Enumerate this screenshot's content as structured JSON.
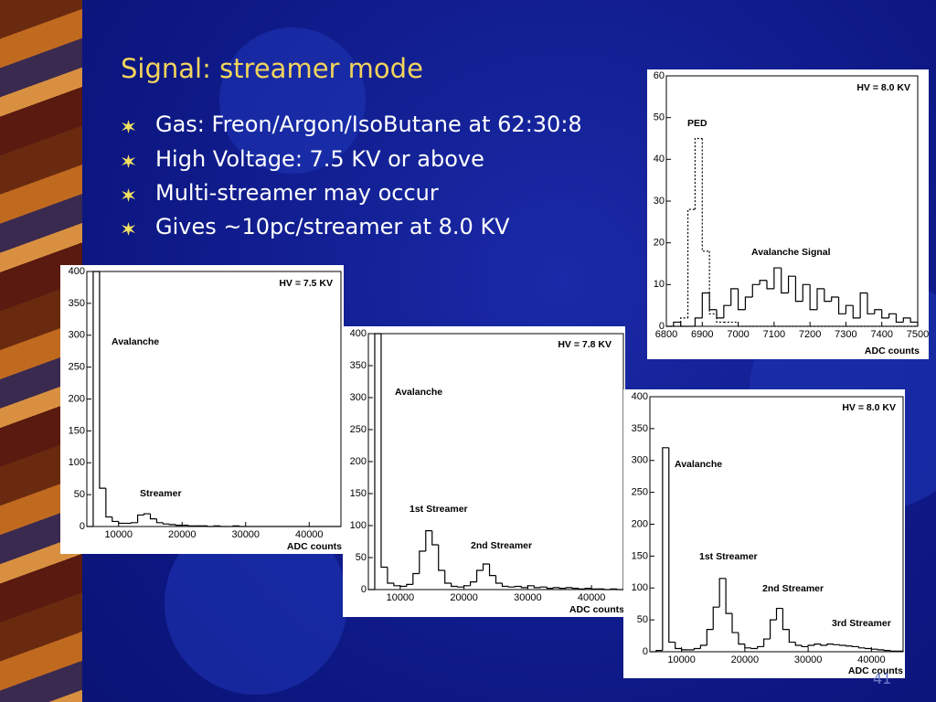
{
  "slide": {
    "title": "Signal: streamer mode",
    "bullets": [
      "Gas: Freon/Argon/IsoButane at 62:30:8",
      "High Voltage: 7.5 KV or above",
      "Multi-streamer may occur",
      "Gives ~10pc/streamer at 8.0 KV"
    ],
    "page_number": "41"
  },
  "chart_data": [
    {
      "type": "histogram",
      "title": "HV = 7.5 KV",
      "x_label": "ADC counts",
      "annotations": [
        "Avalanche",
        "Streamer"
      ],
      "color": "#000000",
      "bins": [
        5000,
        6000,
        7000,
        8000,
        9000,
        10000,
        11000,
        12000,
        13000,
        14000,
        15000,
        16000,
        17000,
        18000,
        19000,
        20000,
        21000,
        22000,
        23000,
        24000,
        25000,
        26000,
        27000,
        28000,
        29000,
        30000,
        31000,
        32000,
        33000,
        34000,
        35000,
        36000,
        37000,
        38000,
        39000,
        40000,
        41000,
        42000,
        43000,
        44000,
        45000
      ],
      "values": [
        0,
        400,
        60,
        15,
        8,
        5,
        5,
        6,
        18,
        20,
        12,
        6,
        4,
        3,
        2,
        2,
        1,
        1,
        1,
        0,
        1,
        0,
        0,
        1,
        0,
        0,
        0,
        0,
        0,
        0,
        0,
        0,
        0,
        0,
        0,
        0,
        0,
        0,
        0,
        0
      ],
      "xlim": [
        5000,
        45000
      ],
      "xticks": [
        10000,
        20000,
        30000,
        40000
      ],
      "ylim": [
        0,
        400
      ],
      "yticks": [
        0,
        50,
        100,
        150,
        200,
        250,
        300,
        350,
        400
      ]
    },
    {
      "type": "histogram",
      "title": "HV = 7.8 KV",
      "x_label": "ADC counts",
      "annotations": [
        "Avalanche",
        "1st Streamer",
        "2nd Streamer"
      ],
      "color": "#000000",
      "bins": [
        5000,
        6000,
        7000,
        8000,
        9000,
        10000,
        11000,
        12000,
        13000,
        14000,
        15000,
        16000,
        17000,
        18000,
        19000,
        20000,
        21000,
        22000,
        23000,
        24000,
        25000,
        26000,
        27000,
        28000,
        29000,
        30000,
        31000,
        32000,
        33000,
        34000,
        35000,
        36000,
        37000,
        38000,
        39000,
        40000,
        41000,
        42000,
        43000,
        44000,
        45000
      ],
      "values": [
        0,
        400,
        35,
        10,
        6,
        5,
        8,
        25,
        60,
        92,
        70,
        30,
        10,
        5,
        4,
        6,
        12,
        30,
        40,
        22,
        10,
        5,
        4,
        5,
        3,
        6,
        3,
        4,
        2,
        3,
        2,
        3,
        2,
        1,
        2,
        1,
        1,
        0,
        1,
        0
      ],
      "xlim": [
        5000,
        45000
      ],
      "xticks": [
        10000,
        20000,
        30000,
        40000
      ],
      "ylim": [
        0,
        400
      ],
      "yticks": [
        0,
        50,
        100,
        150,
        200,
        250,
        300,
        350,
        400
      ]
    },
    {
      "type": "histogram",
      "title": "HV = 8.0 KV",
      "x_label": "ADC counts",
      "annotations": [
        "Avalanche",
        "1st Streamer",
        "2nd Streamer",
        "3rd Streamer"
      ],
      "color": "#000000",
      "bins": [
        5000,
        6000,
        7000,
        8000,
        9000,
        10000,
        11000,
        12000,
        13000,
        14000,
        15000,
        16000,
        17000,
        18000,
        19000,
        20000,
        21000,
        22000,
        23000,
        24000,
        25000,
        26000,
        27000,
        28000,
        29000,
        30000,
        31000,
        32000,
        33000,
        34000,
        35000,
        36000,
        37000,
        38000,
        39000,
        40000,
        41000,
        42000,
        43000,
        44000,
        45000
      ],
      "values": [
        0,
        2,
        320,
        15,
        5,
        3,
        3,
        5,
        10,
        35,
        70,
        115,
        60,
        30,
        12,
        6,
        5,
        8,
        20,
        50,
        68,
        35,
        15,
        10,
        8,
        10,
        12,
        10,
        12,
        11,
        10,
        9,
        8,
        6,
        5,
        4,
        3,
        2,
        1,
        1
      ],
      "xlim": [
        5000,
        45000
      ],
      "xticks": [
        10000,
        20000,
        30000,
        40000
      ],
      "ylim": [
        0,
        400
      ],
      "yticks": [
        0,
        50,
        100,
        150,
        200,
        250,
        300,
        350,
        400
      ]
    },
    {
      "type": "histogram",
      "title": "HV = 8.0 KV",
      "x_label": "ADC counts",
      "bins": [
        6800,
        6820,
        6840,
        6860,
        6880,
        6900,
        6920,
        6940,
        6960,
        6980,
        7000,
        7020,
        7040,
        7060,
        7080,
        7100,
        7120,
        7140,
        7160,
        7180,
        7200,
        7220,
        7240,
        7260,
        7280,
        7300,
        7320,
        7340,
        7360,
        7380,
        7400,
        7420,
        7440,
        7460,
        7480,
        7500
      ],
      "series": [
        {
          "name": "PED",
          "color": "#000000",
          "style": "dashed",
          "values": [
            0,
            0,
            2,
            28,
            45,
            18,
            3,
            1,
            1,
            1,
            0,
            0,
            0,
            0,
            0,
            0,
            0,
            0,
            0,
            0,
            0,
            0,
            0,
            0,
            0,
            0,
            0,
            0,
            0,
            0,
            0,
            0,
            0,
            0,
            0
          ]
        },
        {
          "name": "Avalanche Signal",
          "color": "#000000",
          "style": "solid",
          "values": [
            0,
            1,
            0,
            0,
            2,
            8,
            4,
            2,
            5,
            9,
            4,
            7,
            10,
            11,
            9,
            14,
            8,
            12,
            6,
            10,
            4,
            9,
            6,
            7,
            3,
            5,
            2,
            8,
            3,
            4,
            2,
            3,
            1,
            2,
            1
          ]
        }
      ],
      "xlim": [
        6800,
        7500
      ],
      "xticks": [
        6800,
        6900,
        7000,
        7100,
        7200,
        7300,
        7400,
        7500
      ],
      "ylim": [
        0,
        60
      ],
      "yticks": [
        0,
        10,
        20,
        30,
        40,
        50,
        60
      ]
    }
  ]
}
